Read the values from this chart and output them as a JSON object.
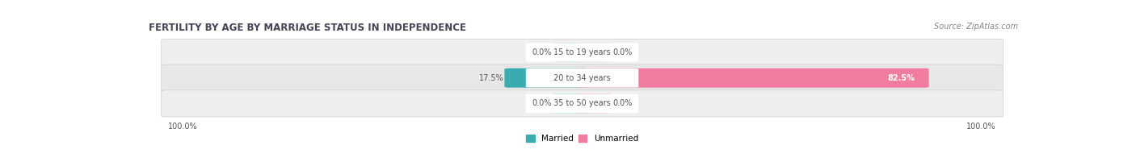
{
  "title": "FERTILITY BY AGE BY MARRIAGE STATUS IN INDEPENDENCE",
  "source": "Source: ZipAtlas.com",
  "rows": [
    {
      "label": "15 to 19 years",
      "married": 0.0,
      "unmarried": 0.0
    },
    {
      "label": "20 to 34 years",
      "married": 17.5,
      "unmarried": 82.5
    },
    {
      "label": "35 to 50 years",
      "married": 0.0,
      "unmarried": 0.0
    }
  ],
  "married_color": "#3aacb0",
  "married_light_color": "#90cdd0",
  "unmarried_color": "#f07ca0",
  "unmarried_light_color": "#f5b0c8",
  "row_bg_color": "#e8e8e8",
  "row_bg_alt_color": "#efefef",
  "left_label": "100.0%",
  "right_label": "100.0%",
  "title_fontsize": 8.5,
  "source_fontsize": 7.0,
  "label_fontsize": 7.0,
  "bar_label_fontsize": 7.0,
  "legend_fontsize": 7.5
}
